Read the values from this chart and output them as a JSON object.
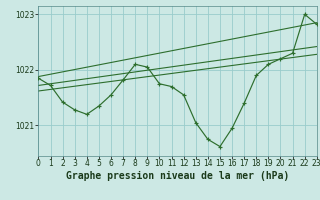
{
  "background_color": "#cce8e4",
  "grid_color": "#99cccc",
  "line_color": "#2d6e2d",
  "title": "Graphe pression niveau de la mer (hPa)",
  "xlim": [
    0,
    23
  ],
  "ylim": [
    1020.45,
    1023.15
  ],
  "yticks": [
    1021,
    1022,
    1023
  ],
  "xticks": [
    0,
    1,
    2,
    3,
    4,
    5,
    6,
    7,
    8,
    9,
    10,
    11,
    12,
    13,
    14,
    15,
    16,
    17,
    18,
    19,
    20,
    21,
    22,
    23
  ],
  "tick_fontsize": 5.5,
  "title_fontsize": 7.0,
  "main_x": [
    0,
    1,
    2,
    3,
    4,
    5,
    6,
    7,
    8,
    9,
    10,
    11,
    12,
    13,
    14,
    15,
    16,
    17,
    18,
    19,
    20,
    21,
    22,
    23
  ],
  "main_y": [
    1021.85,
    1021.72,
    1021.42,
    1021.28,
    1021.2,
    1021.35,
    1021.55,
    1021.82,
    1022.1,
    1022.05,
    1021.75,
    1021.7,
    1021.55,
    1021.05,
    1020.75,
    1020.62,
    1020.95,
    1021.4,
    1021.9,
    1022.1,
    1022.2,
    1022.3,
    1023.0,
    1022.82
  ],
  "trend_lines": [
    [
      1021.88,
      1022.85
    ],
    [
      1021.72,
      1022.42
    ],
    [
      1021.62,
      1022.28
    ]
  ]
}
